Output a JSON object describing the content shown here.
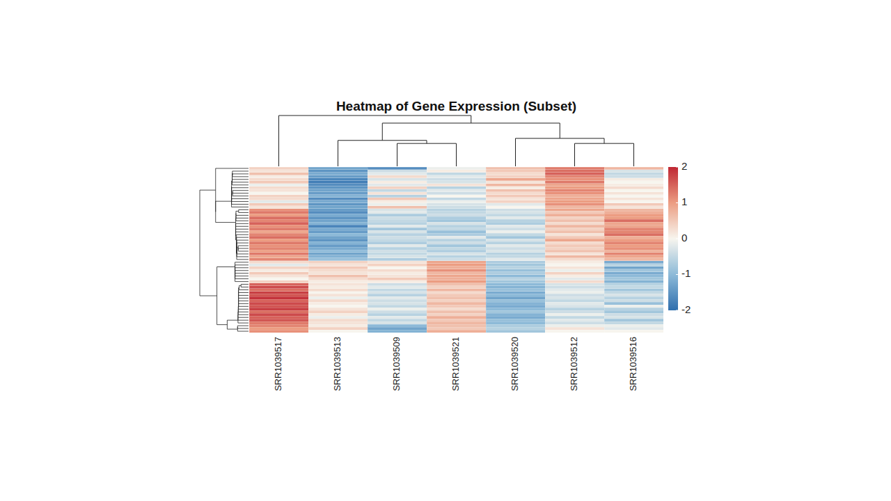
{
  "chart_data": {
    "type": "heatmap",
    "title": "Heatmap of Gene Expression (Subset)",
    "columns": [
      "SRR1039517",
      "SRR1039513",
      "SRR1039509",
      "SRR1039521",
      "SRR1039520",
      "SRR1039512",
      "SRR1039516"
    ],
    "tick_labels": "x",
    "values": [
      [
        0.4,
        -1.3,
        -1.6,
        -0.1,
        0.6,
        1.3,
        0.7
      ],
      [
        0.2,
        -1.5,
        -0.4,
        0.1,
        0.5,
        1.4,
        -0.3
      ],
      [
        0.6,
        -1.2,
        -0.2,
        -0.5,
        0.3,
        1.5,
        -0.5
      ],
      [
        0.1,
        -1.4,
        0.3,
        -0.2,
        0.4,
        1.2,
        -0.4
      ],
      [
        0.3,
        -1.7,
        -0.3,
        -0.4,
        0.9,
        1.1,
        0.1
      ],
      [
        0.5,
        -1.8,
        0.1,
        -0.3,
        0.2,
        1.3,
        0.0
      ],
      [
        -0.1,
        -1.6,
        -0.2,
        0.2,
        0.7,
        0.9,
        0.1
      ],
      [
        0.3,
        -1.5,
        0.4,
        -0.6,
        0.1,
        1.0,
        0.3
      ],
      [
        0.2,
        -1.3,
        -0.5,
        -0.2,
        0.6,
        1.2,
        0.0
      ],
      [
        0.0,
        -1.4,
        0.2,
        -0.4,
        0.3,
        1.1,
        0.2
      ],
      [
        0.4,
        -1.1,
        -0.6,
        0.0,
        0.5,
        0.8,
        0.0
      ],
      [
        0.3,
        -1.6,
        0.5,
        -0.5,
        0.2,
        0.9,
        0.2
      ],
      [
        -0.2,
        -1.2,
        0.1,
        -0.1,
        0.4,
        1.0,
        0.0
      ],
      [
        0.5,
        -1.5,
        -0.1,
        -0.3,
        -0.2,
        1.1,
        0.5
      ],
      [
        0.2,
        -1.3,
        0.6,
        -0.4,
        0.0,
        0.7,
        0.2
      ],
      [
        1.1,
        -1.4,
        -0.3,
        -0.6,
        -0.4,
        0.9,
        0.7
      ],
      [
        1.3,
        -1.6,
        -0.2,
        -0.5,
        -0.3,
        0.5,
        0.8
      ],
      [
        1.0,
        -1.2,
        -0.7,
        -0.4,
        -0.5,
        0.8,
        1.0
      ],
      [
        1.4,
        -1.5,
        -0.4,
        -0.7,
        -0.2,
        0.4,
        1.0
      ],
      [
        1.2,
        -1.3,
        -0.5,
        -0.8,
        -0.6,
        0.6,
        1.4
      ],
      [
        1.5,
        -1.1,
        -0.6,
        -0.3,
        -0.7,
        0.3,
        0.9
      ],
      [
        1.1,
        -1.7,
        -0.2,
        -0.6,
        -0.2,
        0.7,
        0.9
      ],
      [
        1.3,
        -1.2,
        -0.8,
        -0.5,
        -0.4,
        0.4,
        1.2
      ],
      [
        0.9,
        -1.4,
        -0.3,
        -0.9,
        -0.1,
        0.6,
        1.2
      ],
      [
        1.2,
        -1.0,
        -0.6,
        -0.7,
        -0.5,
        0.2,
        1.4
      ],
      [
        1.4,
        -1.3,
        -0.4,
        -0.2,
        -0.8,
        0.5,
        0.8
      ],
      [
        1.0,
        -1.5,
        -0.5,
        -0.6,
        -0.3,
        0.9,
        1.0
      ],
      [
        1.3,
        -1.1,
        -0.7,
        -0.4,
        -0.6,
        0.3,
        1.2
      ],
      [
        1.1,
        -1.4,
        -0.2,
        -0.8,
        -0.2,
        0.5,
        1.0
      ],
      [
        1.2,
        -1.2,
        -0.6,
        -0.5,
        -0.4,
        0.4,
        1.1
      ],
      [
        1.0,
        -1.0,
        -0.4,
        -0.7,
        -0.3,
        0.6,
        0.8
      ],
      [
        1.3,
        -1.3,
        -0.5,
        -0.3,
        -0.6,
        0.2,
        1.2
      ],
      [
        0.9,
        -1.1,
        -0.3,
        -0.6,
        -0.5,
        0.7,
        0.9
      ],
      [
        1.2,
        -0.9,
        -0.7,
        -0.4,
        -0.2,
        0.3,
        0.7
      ],
      [
        0.3,
        0.4,
        0.2,
        0.9,
        -0.7,
        0.1,
        -1.2
      ],
      [
        -0.2,
        0.2,
        0.4,
        1.0,
        -0.8,
        0.0,
        -0.6
      ],
      [
        0.4,
        0.5,
        0.0,
        0.8,
        -0.6,
        0.2,
        -1.3
      ],
      [
        0.1,
        0.3,
        0.3,
        1.1,
        -0.9,
        -0.1,
        -0.8
      ],
      [
        0.5,
        0.2,
        0.1,
        0.7,
        -0.7,
        0.4,
        -1.2
      ],
      [
        0.2,
        0.6,
        0.2,
        0.9,
        -1.0,
        0.1,
        -1.0
      ],
      [
        0.0,
        0.3,
        0.5,
        0.8,
        -0.6,
        -0.2,
        -0.8
      ],
      [
        0.4,
        0.1,
        0.1,
        1.0,
        -0.8,
        0.3,
        -1.1
      ],
      [
        1.5,
        0.2,
        -0.4,
        0.6,
        -1.0,
        -0.3,
        -0.6
      ],
      [
        1.7,
        0.1,
        -0.2,
        0.4,
        -1.1,
        -0.4,
        -0.5
      ],
      [
        1.4,
        0.3,
        -0.5,
        0.7,
        -0.9,
        -0.2,
        -0.8
      ],
      [
        1.8,
        0.0,
        -0.3,
        0.3,
        -1.2,
        -0.1,
        -0.5
      ],
      [
        1.6,
        0.2,
        -0.6,
        0.5,
        -1.0,
        -0.4,
        -0.3
      ],
      [
        1.9,
        -0.1,
        -0.2,
        0.6,
        -1.3,
        -0.3,
        -0.6
      ],
      [
        1.5,
        0.3,
        -0.4,
        0.4,
        -0.9,
        -0.5,
        -0.4
      ],
      [
        1.7,
        0.1,
        -0.3,
        0.7,
        -1.1,
        -0.2,
        -0.9
      ],
      [
        1.6,
        0.0,
        -0.5,
        0.5,
        -1.2,
        -0.3,
        -0.1
      ],
      [
        1.8,
        0.2,
        -0.1,
        0.3,
        -1.0,
        -0.6,
        -0.6
      ],
      [
        1.4,
        0.4,
        -0.4,
        0.6,
        -0.8,
        -0.4,
        -0.8
      ],
      [
        1.7,
        0.1,
        -0.6,
        0.4,
        -1.1,
        -0.1,
        -0.4
      ],
      [
        1.5,
        -0.1,
        -0.2,
        0.8,
        -1.2,
        -0.5,
        -0.3
      ],
      [
        1.6,
        0.3,
        -0.5,
        0.5,
        -0.9,
        -0.2,
        -0.8
      ],
      [
        1.3,
        0.2,
        -0.3,
        0.7,
        -1.0,
        -0.4,
        -0.5
      ],
      [
        1.2,
        0.1,
        -1.0,
        0.6,
        -0.7,
        -0.1,
        -0.1
      ],
      [
        1.0,
        0.4,
        -1.3,
        0.5,
        -0.6,
        0.2,
        -0.2
      ],
      [
        1.1,
        0.0,
        -1.1,
        0.8,
        -0.8,
        0.0,
        0.0
      ]
    ],
    "colorbar": {
      "range": [
        -2,
        2
      ],
      "ticks": [
        -2,
        -1,
        0,
        1,
        2
      ]
    },
    "column_dendrogram": {
      "height": 10,
      "children": [
        0,
        {
          "height": 8.5,
          "children": [
            {
              "height": 5.1,
              "children": [
                1,
                {
                  "height": 4.5,
                  "children": [
                    2,
                    3
                  ]
                }
              ]
            },
            {
              "height": 5.5,
              "children": [
                4,
                {
                  "height": 4.5,
                  "children": [
                    5,
                    6
                  ]
                }
              ]
            }
          ]
        }
      ]
    }
  }
}
